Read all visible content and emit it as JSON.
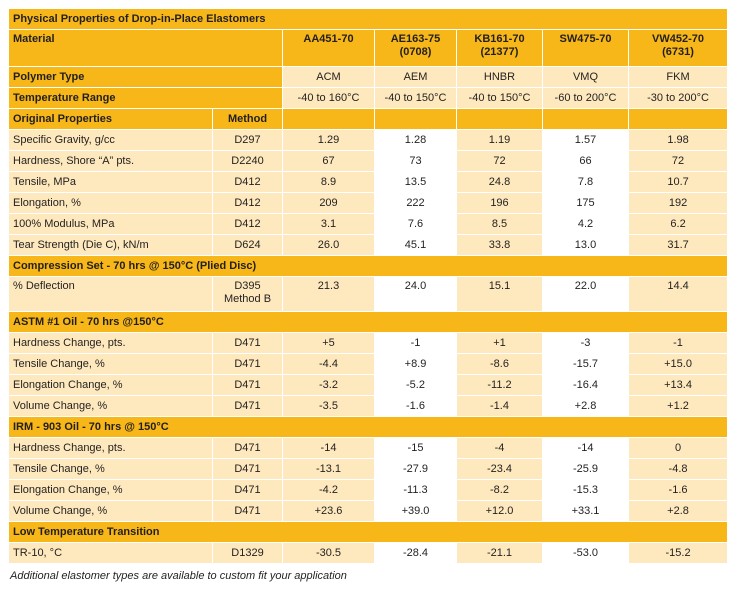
{
  "title": "Physical Properties of Drop-in-Place Elastomers",
  "header": {
    "material_label": "Material",
    "materials": [
      {
        "code": "AA451-70",
        "sub": ""
      },
      {
        "code": "AE163-75",
        "sub": "(0708)"
      },
      {
        "code": "KB161-70",
        "sub": "(21377)"
      },
      {
        "code": "SW475-70",
        "sub": ""
      },
      {
        "code": "VW452-70",
        "sub": "(6731)"
      }
    ],
    "polymer_type_label": "Polymer Type",
    "polymer_types": [
      "ACM",
      "AEM",
      "HNBR",
      "VMQ",
      "FKM"
    ],
    "temperature_range_label": "Temperature Range",
    "temperature_ranges": [
      "-40 to 160°C",
      "-40 to 150°C",
      "-40 to 150°C",
      "-60 to 200°C",
      "-30 to 200°C"
    ]
  },
  "sections": {
    "original": {
      "title": "Original Properties",
      "method_label": "Method",
      "rows": [
        {
          "label": "Specific Gravity, g/cc",
          "method": "D297",
          "values": [
            "1.29",
            "1.28",
            "1.19",
            "1.57",
            "1.98"
          ]
        },
        {
          "label": "Hardness, Shore “A” pts.",
          "method": "D2240",
          "values": [
            "67",
            "73",
            "72",
            "66",
            "72"
          ]
        },
        {
          "label": "Tensile, MPa",
          "method": "D412",
          "values": [
            "8.9",
            "13.5",
            "24.8",
            "7.8",
            "10.7"
          ]
        },
        {
          "label": "Elongation, %",
          "method": "D412",
          "values": [
            "209",
            "222",
            "196",
            "175",
            "192"
          ]
        },
        {
          "label": "100% Modulus, MPa",
          "method": "D412",
          "values": [
            "3.1",
            "7.6",
            "8.5",
            "4.2",
            "6.2"
          ]
        },
        {
          "label": "Tear Strength (Die C), kN/m",
          "method": "D624",
          "values": [
            "26.0",
            "45.1",
            "33.8",
            "13.0",
            "31.7"
          ]
        }
      ]
    },
    "compression": {
      "title": "Compression Set - 70 hrs @ 150°C (Plied Disc)",
      "row": {
        "label": "% Deflection",
        "method_line1": "D395",
        "method_line2": "Method B",
        "values": [
          "21.3",
          "24.0",
          "15.1",
          "22.0",
          "14.4"
        ]
      }
    },
    "astm": {
      "title": "ASTM #1 Oil - 70 hrs @150°C",
      "rows": [
        {
          "label": "Hardness Change, pts.",
          "method": "D471",
          "values": [
            "+5",
            "-1",
            "+1",
            "-3",
            "-1"
          ]
        },
        {
          "label": "Tensile Change, %",
          "method": "D471",
          "values": [
            "-4.4",
            "+8.9",
            "-8.6",
            "-15.7",
            "+15.0"
          ]
        },
        {
          "label": "Elongation Change, %",
          "method": "D471",
          "values": [
            "-3.2",
            "-5.2",
            "-11.2",
            "-16.4",
            "+13.4"
          ]
        },
        {
          "label": "Volume Change, %",
          "method": "D471",
          "values": [
            "-3.5",
            "-1.6",
            "-1.4",
            "+2.8",
            "+1.2"
          ]
        }
      ]
    },
    "irm": {
      "title": "IRM - 903 Oil - 70 hrs @ 150°C",
      "rows": [
        {
          "label": "Hardness Change, pts.",
          "method": "D471",
          "values": [
            "-14",
            "-15",
            "-4",
            "-14",
            "0"
          ]
        },
        {
          "label": "Tensile Change, %",
          "method": "D471",
          "values": [
            "-13.1",
            "-27.9",
            "-23.4",
            "-25.9",
            "-4.8"
          ]
        },
        {
          "label": "Elongation Change, %",
          "method": "D471",
          "values": [
            "-4.2",
            "-11.3",
            "-8.2",
            "-15.3",
            "-1.6"
          ]
        },
        {
          "label": "Volume Change, %",
          "method": "D471",
          "values": [
            "+23.6",
            "+39.0",
            "+12.0",
            "+33.1",
            "+2.8"
          ]
        }
      ]
    },
    "low_temp": {
      "title": "Low Temperature Transition",
      "row": {
        "label": "TR-10, °C",
        "method": "D1329",
        "values": [
          "-30.5",
          "-28.4",
          "-21.1",
          "-53.0",
          "-15.2"
        ]
      }
    }
  },
  "footnote": "Additional elastomer types are available to custom fit your application"
}
